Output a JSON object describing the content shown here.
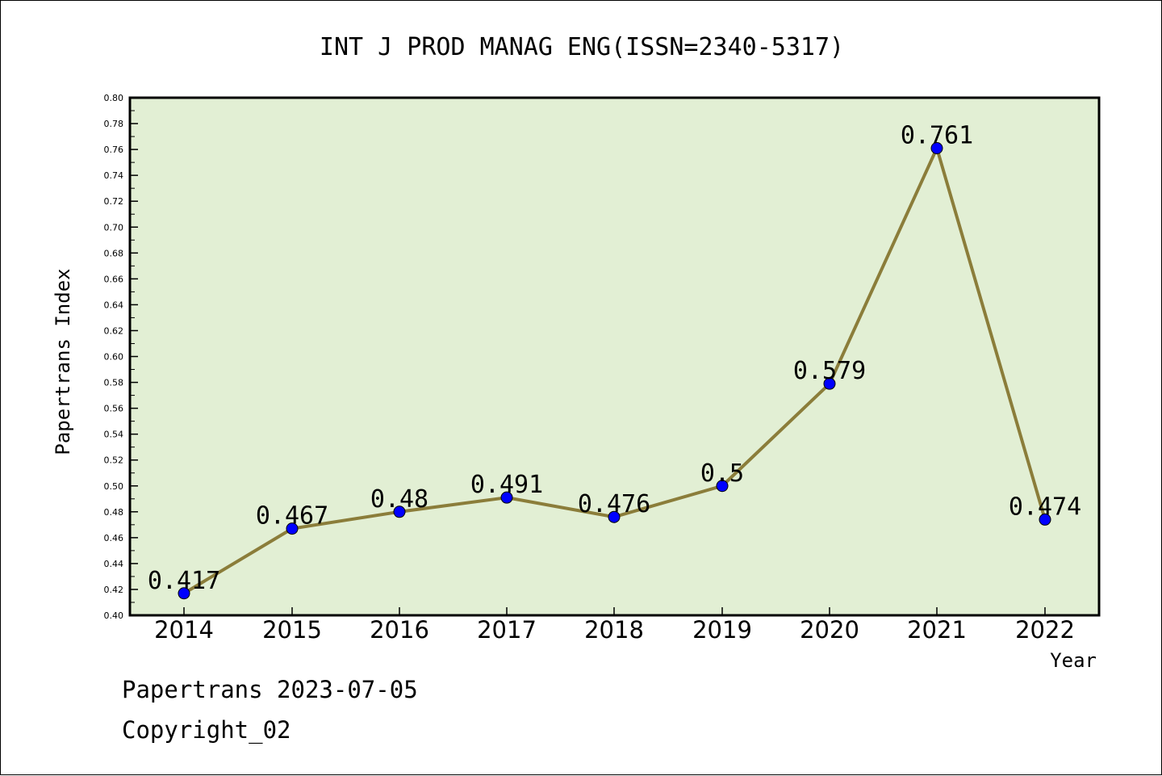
{
  "chart_data": {
    "type": "line",
    "title": "INT J PROD MANAG ENG(ISSN=2340-5317)",
    "xlabel": "Year",
    "ylabel": "Papertrans Index",
    "categories": [
      "2014",
      "2015",
      "2016",
      "2017",
      "2018",
      "2019",
      "2020",
      "2021",
      "2022"
    ],
    "series": [
      {
        "values": [
          0.417,
          0.467,
          0.48,
          0.491,
          0.476,
          0.5,
          0.579,
          0.761,
          0.474
        ],
        "labels": [
          "0.417",
          "0.467",
          "0.48",
          "0.491",
          "0.476",
          "0.5",
          "0.579",
          "0.761",
          "0.474"
        ]
      }
    ],
    "ylim": [
      0.4,
      0.8
    ],
    "yticks": [
      "0.40",
      "0.42",
      "0.44",
      "0.46",
      "0.48",
      "0.50",
      "0.52",
      "0.54",
      "0.56",
      "0.58",
      "0.60",
      "0.62",
      "0.64",
      "0.66",
      "0.68",
      "0.70",
      "0.72",
      "0.74",
      "0.76",
      "0.78",
      "0.80"
    ],
    "grid": false,
    "legend": "none",
    "colors": {
      "plot_background": "#e2efd4",
      "line": "#8b7d3a",
      "marker": "#0000ff"
    }
  },
  "footer": {
    "source": "Papertrans 2023-07-05",
    "copyright": "Copyright_02"
  }
}
